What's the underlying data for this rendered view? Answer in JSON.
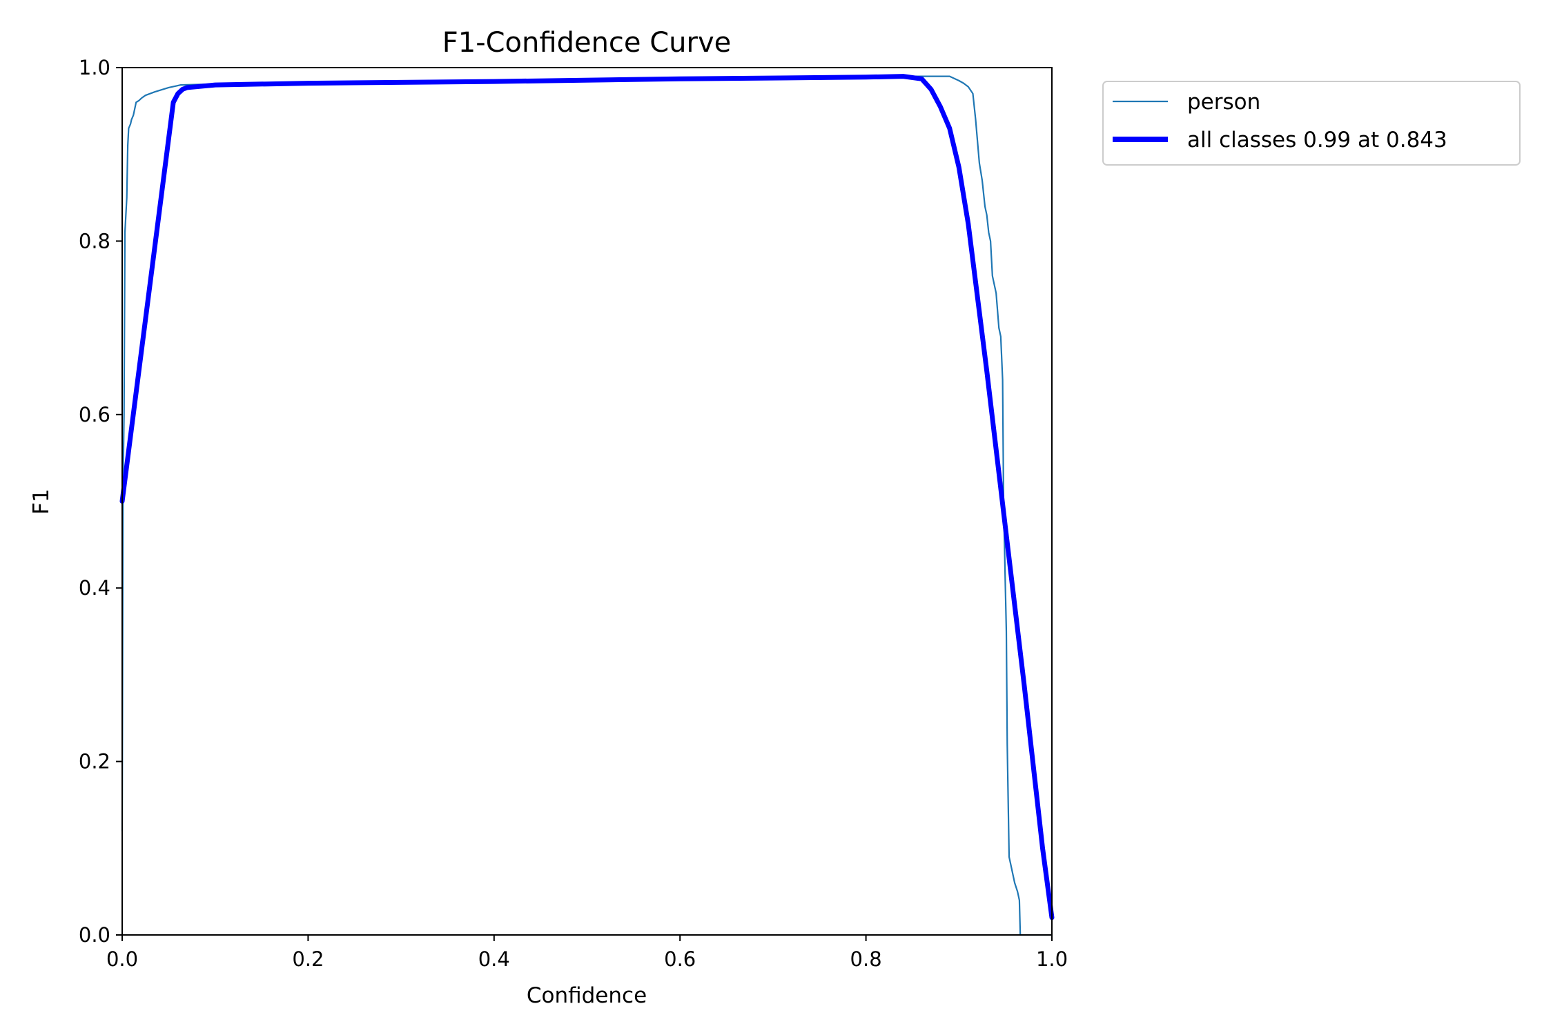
{
  "chart_data": {
    "type": "line",
    "title": "F1-Confidence Curve",
    "xlabel": "Confidence",
    "ylabel": "F1",
    "xlim": [
      0,
      1
    ],
    "ylim": [
      0,
      1
    ],
    "xticks": [
      "0.0",
      "0.2",
      "0.4",
      "0.6",
      "0.8",
      "1.0"
    ],
    "yticks": [
      "0.0",
      "0.2",
      "0.4",
      "0.6",
      "0.8",
      "1.0"
    ],
    "grid": false,
    "legend_position": "outside-top-right",
    "series": [
      {
        "name": "person",
        "color": "#1f77b4",
        "x": [
          0.0,
          0.001,
          0.002,
          0.003,
          0.005,
          0.006,
          0.007,
          0.009,
          0.01,
          0.012,
          0.015,
          0.018,
          0.021,
          0.025,
          0.035,
          0.05,
          0.063,
          0.1,
          0.2,
          0.4,
          0.6,
          0.8,
          0.85,
          0.89,
          0.9,
          0.905,
          0.91,
          0.915,
          0.918,
          0.922,
          0.925,
          0.928,
          0.93,
          0.932,
          0.934,
          0.936,
          0.938,
          0.94,
          0.943,
          0.945,
          0.947,
          0.948,
          0.949,
          0.95,
          0.951,
          0.952,
          0.954,
          0.956,
          0.958,
          0.96,
          0.963,
          0.965,
          0.966,
          0.967,
          0.968,
          1.0
        ],
        "y": [
          0.12,
          0.52,
          0.6,
          0.81,
          0.85,
          0.91,
          0.93,
          0.935,
          0.94,
          0.945,
          0.96,
          0.962,
          0.965,
          0.968,
          0.972,
          0.977,
          0.98,
          0.981,
          0.982,
          0.985,
          0.987,
          0.989,
          0.99,
          0.99,
          0.985,
          0.982,
          0.978,
          0.97,
          0.94,
          0.89,
          0.87,
          0.84,
          0.83,
          0.81,
          0.8,
          0.76,
          0.75,
          0.74,
          0.7,
          0.69,
          0.64,
          0.5,
          0.45,
          0.4,
          0.35,
          0.22,
          0.09,
          0.08,
          0.07,
          0.06,
          0.05,
          0.04,
          0.0,
          0.0,
          0.0,
          0.0
        ]
      },
      {
        "name": "all classes 0.99 at 0.843",
        "color": "#0000ff",
        "x": [
          0.0,
          0.055,
          0.06,
          0.065,
          0.07,
          0.08,
          0.1,
          0.2,
          0.4,
          0.6,
          0.8,
          0.84,
          0.86,
          0.87,
          0.88,
          0.89,
          0.9,
          0.91,
          0.93,
          0.95,
          0.97,
          0.99,
          1.0
        ],
        "y": [
          0.5,
          0.96,
          0.97,
          0.975,
          0.977,
          0.978,
          0.98,
          0.982,
          0.984,
          0.987,
          0.989,
          0.99,
          0.987,
          0.975,
          0.955,
          0.93,
          0.885,
          0.82,
          0.65,
          0.47,
          0.29,
          0.1,
          0.02
        ]
      }
    ]
  }
}
